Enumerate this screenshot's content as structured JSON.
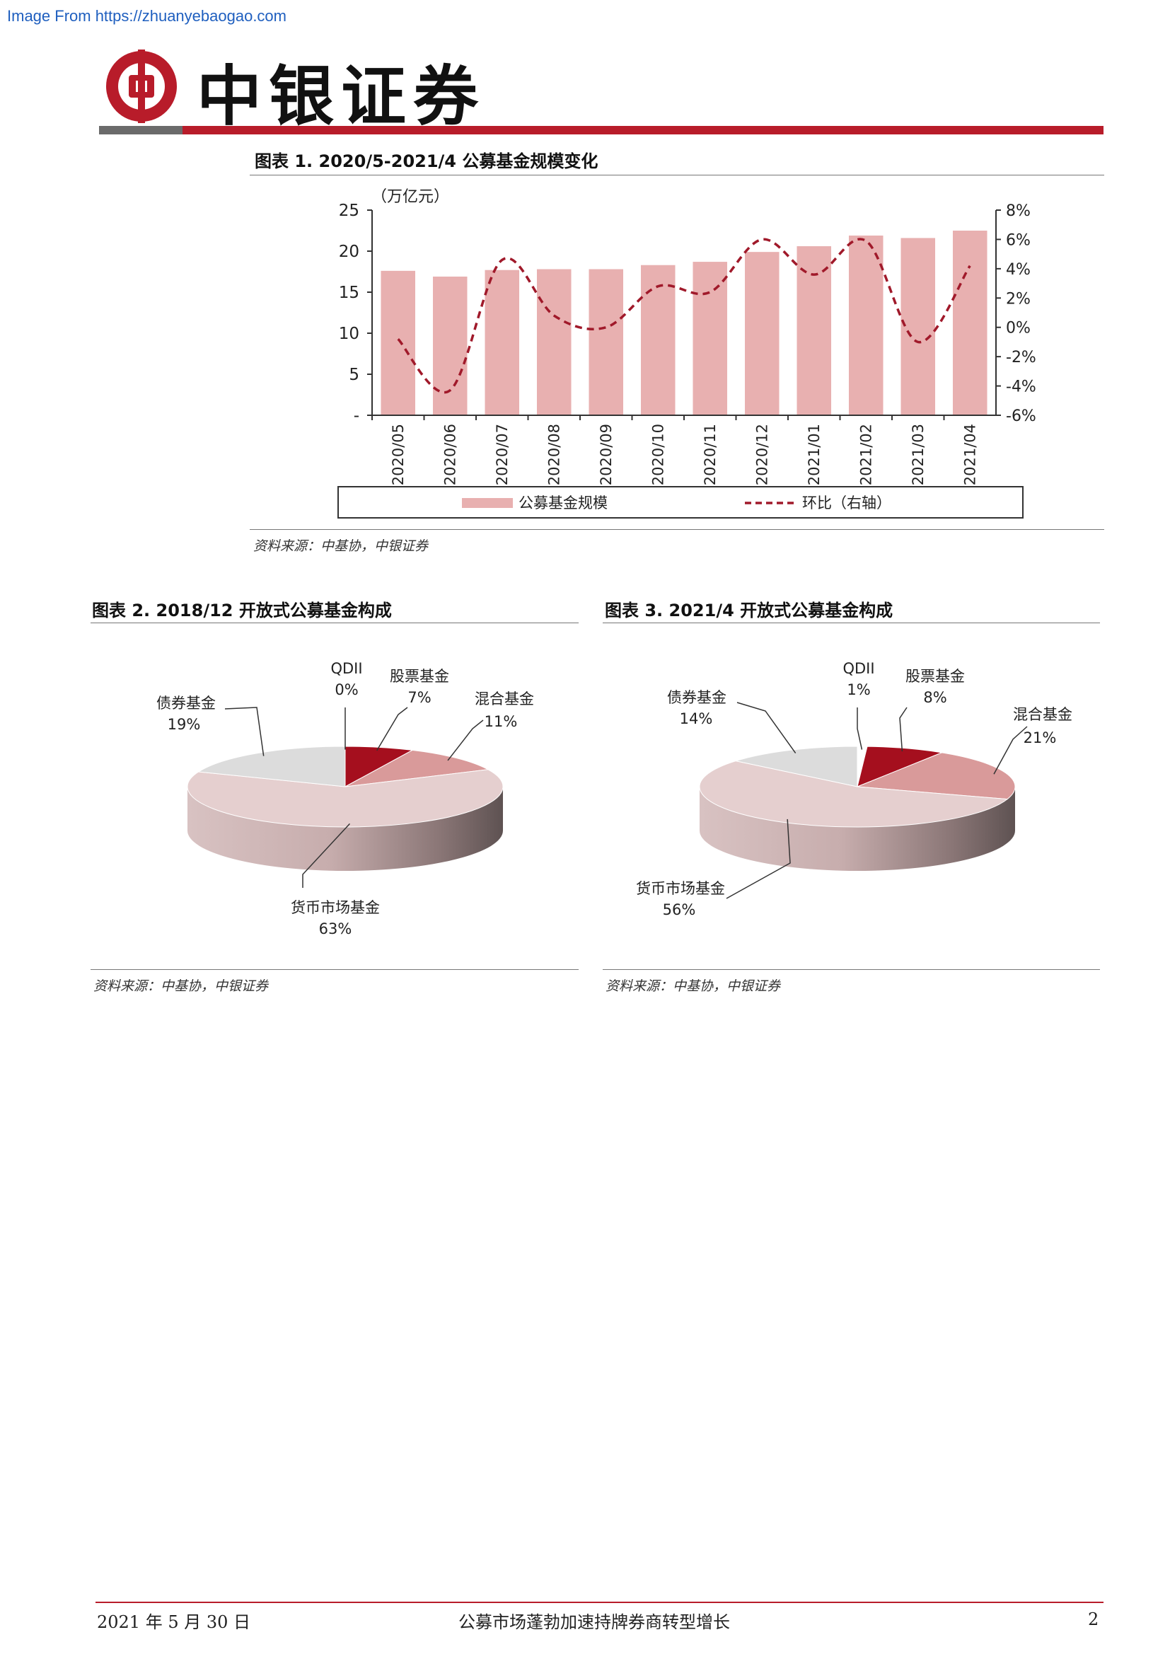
{
  "watermark": "Image From https://zhuanyebaogao.com",
  "brand": {
    "name": "中银证券",
    "red": "#b81c2a",
    "grey": "#6b6b6b"
  },
  "figure1": {
    "title": "图表 1. 2020/5-2021/4 公募基金规模变化",
    "source": "资料来源：中基协，中银证券"
  },
  "figure2": {
    "title": "图表 2. 2018/12 开放式公募基金构成",
    "source": "资料来源：中基协，中银证券"
  },
  "figure3": {
    "title": "图表 3. 2021/4 开放式公募基金构成",
    "source": "资料来源：中基协，中银证券"
  },
  "chart_data": [
    {
      "type": "bar",
      "categories": [
        "2020/05",
        "2020/06",
        "2020/07",
        "2020/08",
        "2020/09",
        "2020/10",
        "2020/11",
        "2020/12",
        "2021/01",
        "2021/02",
        "2021/03",
        "2021/04"
      ],
      "unit_label": "（万亿元）",
      "ylim": [
        0,
        25
      ],
      "y_ticks": [
        "-",
        "5",
        "10",
        "15",
        "20",
        "25"
      ],
      "y2lim": [
        -6,
        8
      ],
      "y2_ticks": [
        "-6%",
        "-4%",
        "-2%",
        "0%",
        "2%",
        "4%",
        "6%",
        "8%"
      ],
      "series": [
        {
          "name": "公募基金规模",
          "type": "bar",
          "axis": "left",
          "color": "#e8b0b0",
          "values": [
            17.6,
            16.9,
            17.7,
            17.8,
            17.8,
            18.3,
            18.7,
            19.9,
            20.6,
            21.9,
            21.6,
            22.5
          ]
        },
        {
          "name": "环比（右轴）",
          "type": "line",
          "axis": "right",
          "style": "dashed",
          "color": "#a0192a",
          "values": [
            -0.8,
            -4.3,
            4.6,
            0.8,
            0.0,
            2.8,
            2.4,
            6.0,
            3.6,
            5.9,
            -1.0,
            4.2
          ]
        }
      ],
      "legend_position": "bottom",
      "grid": false
    },
    {
      "type": "pie",
      "style": "3d",
      "slices": [
        {
          "label": "QDII",
          "value": 0,
          "display": "0%",
          "color": "#ffffff"
        },
        {
          "label": "股票基金",
          "value": 7,
          "display": "7%",
          "color": "#a50f1e"
        },
        {
          "label": "混合基金",
          "value": 11,
          "display": "11%",
          "color": "#d99a9a"
        },
        {
          "label": "货币市场基金",
          "value": 63,
          "display": "63%",
          "color": "#e5cfcf"
        },
        {
          "label": "债券基金",
          "value": 19,
          "display": "19%",
          "color": "#dcdcdc"
        }
      ]
    },
    {
      "type": "pie",
      "style": "3d",
      "slices": [
        {
          "label": "QDII",
          "value": 1,
          "display": "1%",
          "color": "#ffffff"
        },
        {
          "label": "股票基金",
          "value": 8,
          "display": "8%",
          "color": "#a50f1e"
        },
        {
          "label": "混合基金",
          "value": 21,
          "display": "21%",
          "color": "#d99a9a"
        },
        {
          "label": "货币市场基金",
          "value": 56,
          "display": "56%",
          "color": "#e5cfcf"
        },
        {
          "label": "债券基金",
          "value": 14,
          "display": "14%",
          "color": "#dcdcdc"
        }
      ]
    }
  ],
  "footer": {
    "date": "2021 年 5 月 30 日",
    "report_title": "公募市场蓬勃加速持牌券商转型增长",
    "page": "2"
  }
}
